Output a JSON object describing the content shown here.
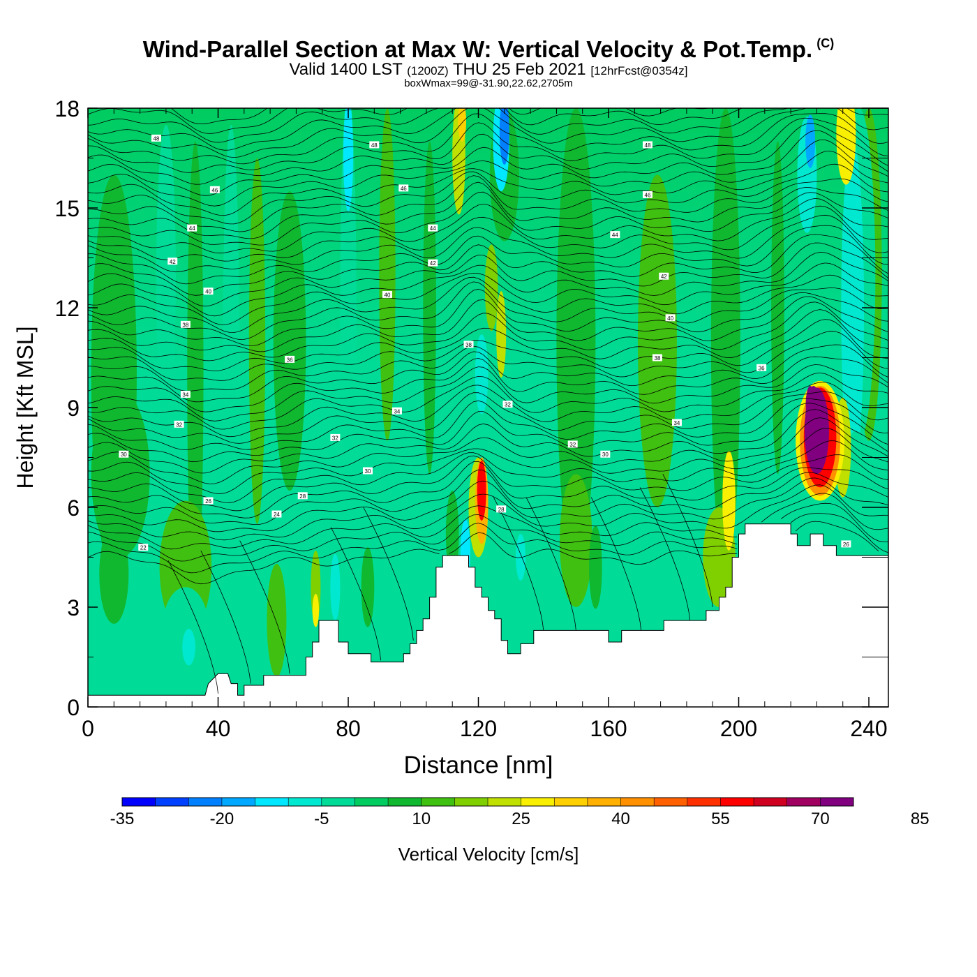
{
  "header": {
    "title": "Wind-Parallel Section at Max W: Vertical Velocity & Pot.Temp.",
    "title_mark": "(C)",
    "valid_a": "Valid 1400 LST",
    "valid_b": "(1200Z)",
    "valid_c": "THU 25 Feb 2021",
    "valid_d": "[12hrFcst@0354z]",
    "box_info": "boxWmax=99@-31.90,22.62,2705m"
  },
  "chart_data": {
    "type": "heatmap",
    "xlabel": "Distance [nm]",
    "ylabel": "Height [Kft MSL]",
    "xlim": [
      0,
      246
    ],
    "ylim": [
      0,
      18
    ],
    "x_ticks": [
      0,
      40,
      80,
      120,
      160,
      200,
      240
    ],
    "y_ticks": [
      0,
      3,
      6,
      9,
      12,
      15,
      18
    ],
    "colorbar": {
      "label": "Vertical Velocity [cm/s]",
      "min": -35,
      "step": 5,
      "tick_labels": [
        -35,
        -20,
        -5,
        10,
        25,
        40,
        55,
        70,
        85
      ],
      "colors": [
        "#0000ff",
        "#0040ff",
        "#0080ff",
        "#00a8ff",
        "#00e8ff",
        "#00e8d0",
        "#00dc98",
        "#00cc60",
        "#10b830",
        "#40c010",
        "#80d000",
        "#c0e000",
        "#f8f000",
        "#ffd000",
        "#ffb000",
        "#ff9000",
        "#ff6000",
        "#ff3000",
        "#ff0000",
        "#d00020",
        "#a00060",
        "#800080"
      ]
    },
    "terrain_kft": [
      [
        0,
        0.35
      ],
      [
        36,
        0.35
      ],
      [
        37,
        0.7
      ],
      [
        40,
        1.0
      ],
      [
        43,
        1.0
      ],
      [
        44,
        0.7
      ],
      [
        46,
        0.7
      ],
      [
        46,
        0.35
      ],
      [
        48,
        0.35
      ],
      [
        48,
        0.65
      ],
      [
        54,
        0.65
      ],
      [
        54,
        0.95
      ],
      [
        67,
        0.95
      ],
      [
        67,
        1.5
      ],
      [
        69,
        1.5
      ],
      [
        69,
        1.95
      ],
      [
        71,
        1.95
      ],
      [
        71,
        2.6
      ],
      [
        77,
        2.6
      ],
      [
        77,
        1.95
      ],
      [
        80,
        1.95
      ],
      [
        80,
        1.6
      ],
      [
        87,
        1.6
      ],
      [
        87,
        1.35
      ],
      [
        97,
        1.35
      ],
      [
        97,
        1.6
      ],
      [
        99,
        1.6
      ],
      [
        99,
        1.9
      ],
      [
        101,
        1.9
      ],
      [
        101,
        2.3
      ],
      [
        103,
        2.3
      ],
      [
        103,
        2.65
      ],
      [
        105,
        2.65
      ],
      [
        105,
        3.3
      ],
      [
        107,
        3.3
      ],
      [
        107,
        4.2
      ],
      [
        109,
        4.2
      ],
      [
        109,
        4.55
      ],
      [
        117,
        4.55
      ],
      [
        117,
        4.2
      ],
      [
        119,
        4.2
      ],
      [
        119,
        3.6
      ],
      [
        121,
        3.6
      ],
      [
        121,
        3.3
      ],
      [
        123,
        3.3
      ],
      [
        123,
        2.9
      ],
      [
        125,
        2.9
      ],
      [
        125,
        2.65
      ],
      [
        127,
        2.65
      ],
      [
        127,
        2.0
      ],
      [
        129,
        2.0
      ],
      [
        129,
        1.6
      ],
      [
        133,
        1.6
      ],
      [
        133,
        1.9
      ],
      [
        137,
        1.9
      ],
      [
        137,
        2.3
      ],
      [
        160,
        2.3
      ],
      [
        160,
        1.95
      ],
      [
        164,
        1.95
      ],
      [
        164,
        2.3
      ],
      [
        177,
        2.3
      ],
      [
        177,
        2.6
      ],
      [
        190,
        2.6
      ],
      [
        190,
        2.9
      ],
      [
        194,
        2.9
      ],
      [
        194,
        3.3
      ],
      [
        196,
        3.3
      ],
      [
        196,
        3.6
      ],
      [
        198,
        3.6
      ],
      [
        198,
        4.5
      ],
      [
        200,
        4.5
      ],
      [
        200,
        5.2
      ],
      [
        202,
        5.2
      ],
      [
        202,
        5.5
      ],
      [
        216,
        5.5
      ],
      [
        216,
        5.2
      ],
      [
        218,
        5.2
      ],
      [
        218,
        4.85
      ],
      [
        222,
        4.85
      ],
      [
        222,
        5.2
      ],
      [
        226,
        5.2
      ],
      [
        226,
        4.85
      ],
      [
        230,
        4.85
      ],
      [
        230,
        4.55
      ],
      [
        246,
        4.55
      ]
    ],
    "isentrope_labels": [
      {
        "text": "48",
        "x": 21,
        "y": 17.1
      },
      {
        "text": "48",
        "x": 88,
        "y": 16.9
      },
      {
        "text": "48",
        "x": 172,
        "y": 16.9
      },
      {
        "text": "46",
        "x": 39,
        "y": 15.55
      },
      {
        "text": "46",
        "x": 97,
        "y": 15.6
      },
      {
        "text": "46",
        "x": 172,
        "y": 15.4
      },
      {
        "text": "44",
        "x": 32,
        "y": 14.4
      },
      {
        "text": "44",
        "x": 106,
        "y": 14.4
      },
      {
        "text": "44",
        "x": 162,
        "y": 14.2
      },
      {
        "text": "42",
        "x": 26,
        "y": 13.4
      },
      {
        "text": "42",
        "x": 106,
        "y": 13.35
      },
      {
        "text": "42",
        "x": 177,
        "y": 12.95
      },
      {
        "text": "40",
        "x": 37,
        "y": 12.5
      },
      {
        "text": "40",
        "x": 92,
        "y": 12.4
      },
      {
        "text": "40",
        "x": 179,
        "y": 11.7
      },
      {
        "text": "38",
        "x": 30,
        "y": 11.5
      },
      {
        "text": "38",
        "x": 117,
        "y": 10.9
      },
      {
        "text": "38",
        "x": 175,
        "y": 10.5
      },
      {
        "text": "36",
        "x": 62,
        "y": 10.45
      },
      {
        "text": "36",
        "x": 207,
        "y": 10.2
      },
      {
        "text": "34",
        "x": 30,
        "y": 9.4
      },
      {
        "text": "34",
        "x": 95,
        "y": 8.9
      },
      {
        "text": "34",
        "x": 181,
        "y": 8.55
      },
      {
        "text": "32",
        "x": 28,
        "y": 8.5
      },
      {
        "text": "32",
        "x": 76,
        "y": 8.1
      },
      {
        "text": "32",
        "x": 149,
        "y": 7.9
      },
      {
        "text": "32",
        "x": 129,
        "y": 9.1
      },
      {
        "text": "30",
        "x": 11,
        "y": 7.6
      },
      {
        "text": "30",
        "x": 86,
        "y": 7.1
      },
      {
        "text": "30",
        "x": 159,
        "y": 7.6
      },
      {
        "text": "28",
        "x": 66,
        "y": 6.35
      },
      {
        "text": "28",
        "x": 127,
        "y": 5.95
      },
      {
        "text": "26",
        "x": 37,
        "y": 6.2
      },
      {
        "text": "26",
        "x": 233,
        "y": 4.9
      },
      {
        "text": "24",
        "x": 58,
        "y": 5.8
      },
      {
        "text": "22",
        "x": 17,
        "y": 4.8
      }
    ]
  }
}
